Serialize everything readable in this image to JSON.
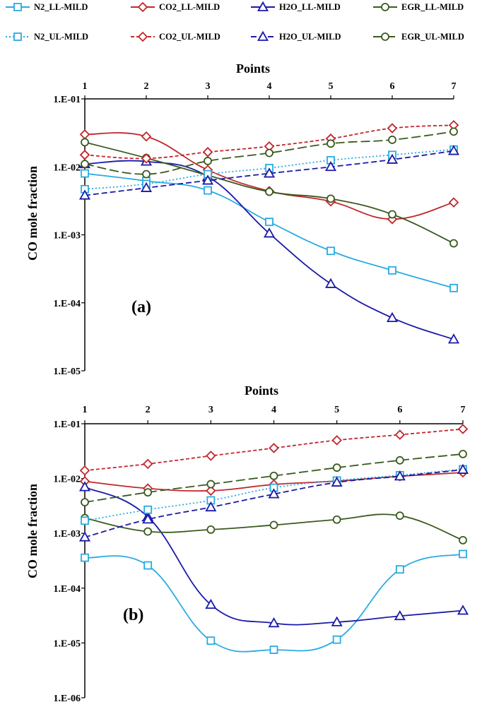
{
  "legend": {
    "entries": [
      {
        "label": "N2_LL-MILD",
        "color": "#29abe2",
        "dash": "solid",
        "marker": "square"
      },
      {
        "label": "CO2_LL-MILD",
        "color": "#c1272d",
        "dash": "solid",
        "marker": "diamond"
      },
      {
        "label": "H2O_LL-MILD",
        "color": "#1a1aa8",
        "dash": "solid",
        "marker": "triangle"
      },
      {
        "label": "EGR_LL-MILD",
        "color": "#3a5a1e",
        "dash": "solid",
        "marker": "circle"
      },
      {
        "label": "N2_UL-MILD",
        "color": "#29abe2",
        "dash": "dotted",
        "marker": "square"
      },
      {
        "label": "CO2_UL-MILD",
        "color": "#c1272d",
        "dash": "shortdash",
        "marker": "diamond"
      },
      {
        "label": "H2O_UL-MILD",
        "color": "#1a1aa8",
        "dash": "dash",
        "marker": "triangle"
      },
      {
        "label": "EGR_UL-MILD",
        "color": "#3a5a1e",
        "dash": "longdash",
        "marker": "circle"
      }
    ]
  },
  "chart_data": [
    {
      "type": "line",
      "panel_label": "(a)",
      "xlabel": "Points",
      "ylabel": "CO mole fraction",
      "x": [
        1,
        2,
        3,
        4,
        5,
        6,
        7
      ],
      "x_tick_labels": [
        "1",
        "2",
        "3",
        "4",
        "5",
        "6",
        "7"
      ],
      "y_scale": "log",
      "ylim": [
        1e-05,
        0.1
      ],
      "y_tick_labels": [
        "1.E-05",
        "1.E-04",
        "1.E-03",
        "1.E-02",
        "1.E-01"
      ],
      "series": [
        {
          "name": "N2_LL-MILD",
          "values": [
            0.008,
            0.0062,
            0.0045,
            0.00155,
            0.00058,
            0.0003,
            0.000165
          ]
        },
        {
          "name": "CO2_LL-MILD",
          "values": [
            0.03,
            0.028,
            0.009,
            0.0044,
            0.0031,
            0.0017,
            0.003
          ]
        },
        {
          "name": "H2O_LL-MILD",
          "values": [
            0.011,
            0.012,
            0.0072,
            0.00105,
            0.00019,
            6e-05,
            2.9e-05
          ]
        },
        {
          "name": "EGR_LL-MILD",
          "values": [
            0.023,
            0.0135,
            0.0075,
            0.0043,
            0.0034,
            0.002,
            0.00075
          ]
        },
        {
          "name": "N2_UL-MILD",
          "values": [
            0.0047,
            0.0056,
            0.0078,
            0.0096,
            0.0125,
            0.015,
            0.018
          ]
        },
        {
          "name": "CO2_UL-MILD",
          "values": [
            0.015,
            0.0133,
            0.0165,
            0.02,
            0.026,
            0.037,
            0.041
          ]
        },
        {
          "name": "H2O_UL-MILD",
          "values": [
            0.0038,
            0.0049,
            0.0063,
            0.008,
            0.01,
            0.0128,
            0.0172
          ]
        },
        {
          "name": "EGR_UL-MILD",
          "values": [
            0.011,
            0.0078,
            0.0122,
            0.016,
            0.022,
            0.025,
            0.033
          ]
        }
      ]
    },
    {
      "type": "line",
      "panel_label": "(b)",
      "xlabel": "Points",
      "ylabel": "CO mole fraction",
      "x": [
        1,
        2,
        3,
        4,
        5,
        6,
        7
      ],
      "x_tick_labels": [
        "1",
        "2",
        "3",
        "4",
        "5",
        "6",
        "7"
      ],
      "y_scale": "log",
      "ylim": [
        1e-06,
        0.1
      ],
      "y_tick_labels": [
        "1.E-06",
        "1.E-05",
        "1.E-04",
        "1.E-03",
        "1.E-02",
        "1.E-01"
      ],
      "series": [
        {
          "name": "N2_LL-MILD",
          "values": [
            0.00036,
            0.00026,
            1.1e-05,
            7.5e-06,
            1.15e-05,
            0.00022,
            0.00042
          ]
        },
        {
          "name": "CO2_LL-MILD",
          "values": [
            0.0089,
            0.0066,
            0.006,
            0.0078,
            0.009,
            0.011,
            0.0129
          ]
        },
        {
          "name": "H2O_LL-MILD",
          "values": [
            0.007,
            0.002,
            5e-05,
            2.3e-05,
            2.4e-05,
            3.1e-05,
            3.9e-05
          ]
        },
        {
          "name": "EGR_LL-MILD",
          "values": [
            0.0019,
            0.00108,
            0.00117,
            0.00142,
            0.00178,
            0.0021,
            0.00075
          ]
        },
        {
          "name": "N2_UL-MILD",
          "values": [
            0.0017,
            0.0027,
            0.004,
            0.0068,
            0.0092,
            0.0115,
            0.0148
          ]
        },
        {
          "name": "CO2_UL-MILD",
          "values": [
            0.014,
            0.0185,
            0.026,
            0.036,
            0.05,
            0.063,
            0.08
          ]
        },
        {
          "name": "H2O_UL-MILD",
          "values": [
            0.00085,
            0.0018,
            0.003,
            0.0052,
            0.0085,
            0.011,
            0.0145
          ]
        },
        {
          "name": "EGR_UL-MILD",
          "values": [
            0.0037,
            0.0056,
            0.0079,
            0.0112,
            0.0158,
            0.0215,
            0.028
          ]
        }
      ]
    }
  ]
}
